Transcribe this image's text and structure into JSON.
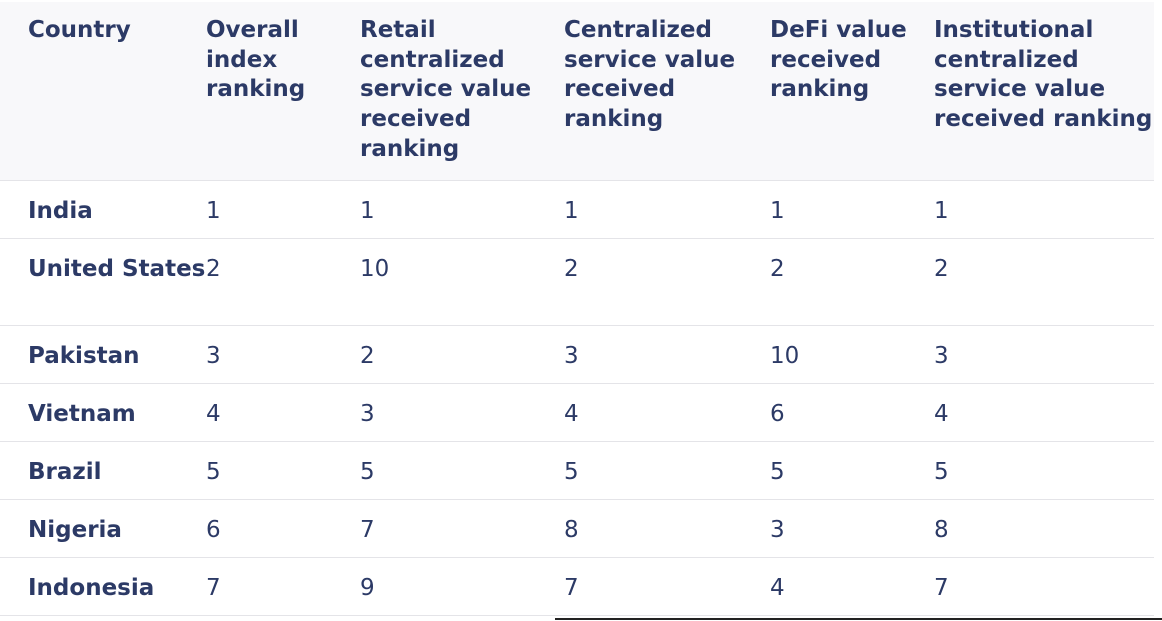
{
  "table": {
    "headers": [
      "Country",
      "Overall index ranking",
      "Retail centralized service value received ranking",
      "Centralized service value received ranking",
      "DeFi value received ranking",
      "Institutional centralized service value received ranking"
    ],
    "rows": [
      [
        "India",
        "1",
        "1",
        "1",
        "1",
        "1"
      ],
      [
        "United States",
        "2",
        "10",
        "2",
        "2",
        "2"
      ],
      [
        "Pakistan",
        "3",
        "2",
        "3",
        "10",
        "3"
      ],
      [
        "Vietnam",
        "4",
        "3",
        "4",
        "6",
        "4"
      ],
      [
        "Brazil",
        "5",
        "5",
        "5",
        "5",
        "5"
      ],
      [
        "Nigeria",
        "6",
        "7",
        "8",
        "3",
        "8"
      ],
      [
        "Indonesia",
        "7",
        "9",
        "7",
        "4",
        "7"
      ]
    ]
  },
  "colors": {
    "text": "#2c3a66",
    "header_bg": "#f8f8fa",
    "row_divider": "#e4e4e8"
  }
}
